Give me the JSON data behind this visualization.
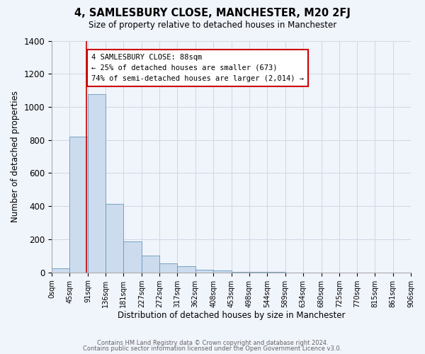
{
  "title": "4, SAMLESBURY CLOSE, MANCHESTER, M20 2FJ",
  "subtitle": "Size of property relative to detached houses in Manchester",
  "xlabel": "Distribution of detached houses by size in Manchester",
  "ylabel": "Number of detached properties",
  "bin_edges": [
    0,
    45,
    91,
    136,
    181,
    227,
    272,
    317,
    362,
    408,
    453,
    498,
    544,
    589,
    634,
    680,
    725,
    770,
    815,
    861,
    906
  ],
  "bar_heights": [
    25,
    820,
    1075,
    415,
    185,
    100,
    55,
    38,
    15,
    10,
    5,
    2,
    1,
    0,
    0,
    0,
    0,
    0,
    0,
    0
  ],
  "bar_color": "#ccdcee",
  "bar_edge_color": "#6699bb",
  "grid_color": "#d0d8e4",
  "background_color": "#f0f4fb",
  "property_size": 88,
  "red_line_color": "#cc0000",
  "annotation_line1": "4 SAMLESBURY CLOSE: 88sqm",
  "annotation_line2": "← 25% of detached houses are smaller (673)",
  "annotation_line3": "74% of semi-detached houses are larger (2,014) →",
  "annotation_box_facecolor": "#ffffff",
  "annotation_border_color": "#cc0000",
  "ylim": [
    0,
    1400
  ],
  "yticks": [
    0,
    200,
    400,
    600,
    800,
    1000,
    1200,
    1400
  ],
  "footer_line1": "Contains HM Land Registry data © Crown copyright and database right 2024.",
  "footer_line2": "Contains public sector information licensed under the Open Government Licence v3.0."
}
